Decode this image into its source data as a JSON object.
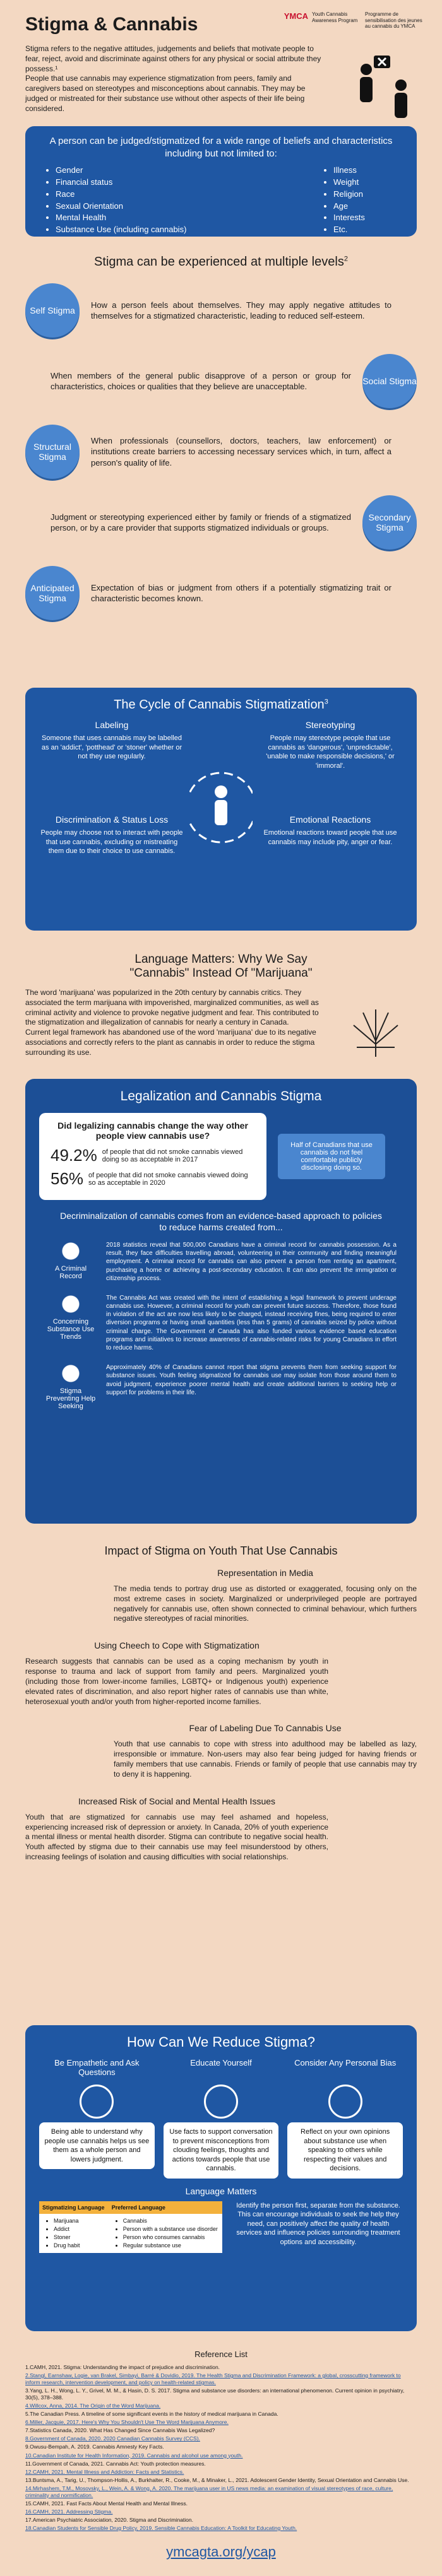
{
  "header": {
    "title": "Stigma & Cannabis",
    "org": [
      "YMCA",
      "Youth Cannabis Awareness Program",
      "Programme de sensibilisation des jeunes au cannabis du YMCA"
    ],
    "intro": [
      "Stigma refers to the negative attitudes, judgements and beliefs that motivate people to fear, reject, avoid and discriminate against others for any physical or social attribute they possess.¹",
      "People that use cannabis may experience stigmatization from peers, family and caregivers based on stereotypes and misconceptions about cannabis. They may be judged or mistreated for their substance use without other aspects of their life being considered."
    ]
  },
  "characteristics": {
    "heading": "A person can be judged/stigmatized for a wide range of beliefs and characteristics including but not limited to:",
    "left": [
      "Gender",
      "Financial status",
      "Race",
      "Sexual Orientation",
      "Mental Health",
      "Substance Use (including cannabis)"
    ],
    "right": [
      "Illness",
      "Weight",
      "Religion",
      "Age",
      "Interests",
      "Etc."
    ]
  },
  "levels": {
    "heading": "Stigma can be experienced at multiple levels",
    "note": "2",
    "items": [
      {
        "label": "Self Stigma",
        "text": "How a person feels about themselves. They may apply negative attitudes to themselves for a stigmatized characteristic, leading to reduced self-esteem."
      },
      {
        "label": "Social Stigma",
        "text": "When members of the general public disapprove of a person or group for characteristics, choices or qualities that they believe are unacceptable."
      },
      {
        "label": "Structural Stigma",
        "text": "When professionals (counsellors, doctors, teachers, law enforcement) or institutions create barriers to accessing necessary services which, in turn, affect a person's quality of life."
      },
      {
        "label": "Secondary Stigma",
        "text": "Judgment or stereotyping experienced either by family or friends of a stigmatized person, or by a care provider that supports stigmatized individuals or groups."
      },
      {
        "label": "Anticipated Stigma",
        "text": "Expectation of bias or judgment from others if a potentially stigmatizing trait or characteristic becomes known."
      }
    ]
  },
  "cycle": {
    "title": "The Cycle of Cannabis Stigmatization",
    "note": "3",
    "items": [
      {
        "title": "Labeling",
        "text": "Someone that uses cannabis may be labelled as an 'addict', 'potthead' or 'stoner' whether or not they use regularly."
      },
      {
        "title": "Stereotyping",
        "text": "People may stereotype people that use cannabis as 'dangerous', 'unpredictable', 'unable to make responsible decisions,' or 'immoral'."
      },
      {
        "title": "Discrimination & Status Loss",
        "text": "People may choose not to interact with people that use cannabis, excluding or mistreating them due to their choice to use cannabis."
      },
      {
        "title": "Emotional Reactions",
        "text": "Emotional reactions toward people that use cannabis may include pity, anger or fear."
      }
    ]
  },
  "language": {
    "title": "Language Matters: Why We Say",
    "subtitle": "\"Cannabis\" Instead Of \"Marijuana\"",
    "text": [
      "The word 'marijuana' was popularized in the 20th century by cannabis critics. They associated the term marijuana with impoverished, marginalized communities, as well as criminal activity and violence to provoke negative judgment and fear. This contributed to the stigmatization and illegalization of cannabis for nearly a century in Canada.",
      "Current legal framework has abandoned use of the word 'marijuana' due to its negative associations and correctly refers to the plant as cannabis in order to reduce the stigma surrounding its use."
    ]
  },
  "legalization": {
    "title": "Legalization and Cannabis Stigma",
    "question": "Did legalizing cannabis change the way other people view cannabis use?",
    "stats": [
      {
        "value": "49.2%",
        "text": "of people that did not smoke cannabis viewed doing so as acceptable in 2017"
      },
      {
        "value": "56%",
        "text": "of people that did not smoke cannabis viewed doing so as acceptable in 2020"
      }
    ],
    "callout": "Half of Canadians that use cannabis do not feel comfortable publicly disclosing doing so.",
    "intro": "Decriminalization of cannabis comes from an evidence-based approach to policies to reduce harms created from...",
    "items": [
      {
        "label": "A Criminal Record",
        "text": "2018 statistics reveal that 500,000 Canadians have a criminal record for cannabis possession. As a result, they face difficulties travelling abroad, volunteering in their community and finding meaningful employment. A criminal record for cannabis can also prevent a person from renting an apartment, purchasing a home or achieving a post-secondary education. It can also prevent the immigration or citizenship process."
      },
      {
        "label": "Concerning Substance Use Trends",
        "text": "The Cannabis Act was created with the intent of establishing a legal framework to prevent underage cannabis use. However, a criminal record for youth can prevent future success. Therefore, those found in violation of the act are now less likely to be charged, instead receiving fines, being required to enter diversion programs or having small quantities (less than 5 grams) of cannabis seized by police without criminal charge. The Government of Canada has also funded various evidence based education programs and initiatives to increase awareness of cannabis-related risks for young Canadians in effort to reduce harms."
      },
      {
        "label": "Stigma Preventing Help Seeking",
        "text": "Approximately 40% of Canadians cannot report that stigma prevents them from seeking support for substance issues. Youth feeling stigmatized for cannabis use may isolate from those around them to avoid judgment, experience poorer mental health and create additional barriers to seeking help or support for problems in their life."
      }
    ]
  },
  "impact": {
    "title": "Impact of Stigma on Youth That Use Cannabis",
    "items": [
      {
        "title": "Representation in Media",
        "text": "The media tends to portray drug use as distorted or exaggerated, focusing only on the most extreme cases in society. Marginalized or underprivileged people are portrayed negatively for cannabis use, often shown connected to criminal behaviour, which furthers negative stereotypes of racial minorities."
      },
      {
        "title": "Using Cheech to Cope with Stigmatization",
        "text": "Research suggests that cannabis can be used as a coping mechanism by youth in response to trauma and lack of support from family and peers. Marginalized youth (including those from lower-income families, LGBTQ+ or Indigenous youth) experience elevated rates of discrimination, and also report higher rates of cannabis use than white, heterosexual youth and/or youth from higher-reported income families."
      },
      {
        "title": "Fear of Labeling Due To Cannabis Use",
        "text": "Youth that use cannabis to cope with stress into adulthood may be labelled as lazy, irresponsible or immature. Non-users may also fear being judged for having friends or family members that use cannabis. Friends or family of people that use cannabis may try to deny it is happening."
      },
      {
        "title": "Increased Risk of Social and Mental Health Issues",
        "text": "Youth that are stigmatized for cannabis use may feel ashamed and hopeless, experiencing increased risk of depression or anxiety. In Canada, 20% of youth experience a mental illness or mental health disorder. Stigma can contribute to negative social health. Youth affected by stigma due to their cannabis use may feel misunderstood by others, increasing feelings of isolation and causing difficulties with social relationships."
      }
    ]
  },
  "reduce": {
    "title": "How Can We Reduce Stigma?",
    "tips": [
      {
        "title": "Be Empathetic and Ask Questions",
        "text": "Being able to understand why people use cannabis helps us see them as a whole person and lowers judgment."
      },
      {
        "title": "Educate Yourself",
        "text": "Use facts to support conversation to prevent misconceptions from clouding feelings, thoughts and actions towards people that use cannabis."
      },
      {
        "title": "Consider Any Personal Bias",
        "text": "Reflect on your own opinions about substance use when speaking to others while respecting their values and decisions."
      }
    ],
    "lm_title": "Language Matters",
    "headers": [
      "Stigmatizing Language",
      "Preferred Language"
    ],
    "stigmatizing": [
      "Marijuana",
      "Addict",
      "Stoner",
      "Drug habit"
    ],
    "preferred": [
      "Cannabis",
      "Person with a substance use disorder",
      "Person who consumes cannabis",
      "Regular substance use"
    ],
    "lm_text": "Identify the person first, separate from the substance. This can encourage individuals to seek the help they need, can positively affect the quality of health services and influence policies surrounding treatment options and accessibility."
  },
  "references": {
    "title": "Reference List",
    "items": [
      "1.CAMH, 2021. Stigma: Understanding the impact of prejudice and discrimination.",
      "2.Stangl, Earnshaw, Logie, van Brakel, Simbayi, Barré & Dovidio, 2019. The Health Stigma and Discrimination Framework: a global, crosscutting framework to inform research, intervention development, and policy on health-related stigmas.",
      "3.Yang, L. H., Wong, L. Y., Grivel, M. M., & Hasin, D. S. 2017. Stigma and substance use disorders: an international phenomenon. Current opinion in psychiatry, 30(5), 378–388.",
      "4.Willcox, Anna, 2014. The Origin of the Word Marijuana.",
      "5.The Canadian Press. A timeline of some significant events in the history of medical marijuana in Canada.",
      "6.Miller, Jacquie, 2017. Here's Why You Shouldn't Use The Word Marijuana Anymore.",
      "7.Statistics Canada, 2020. What Has Changed Since Cannabis Was Legalized?",
      "8.Government of Canada, 2020. 2020 Canadian Cannabis Survey (CCS).",
      "9.Owusu-Bempah, A. 2019. Cannabis Amnesty Key Facts.",
      "10.Canadian Institute for Health Information, 2019. Cannabis and alcohol use among youth.",
      "11.Government of Canada, 2021. Cannabis Act: Youth protection measures.",
      "12.CAMH, 2021. Mental Illness and Addiction: Facts and Statistics.",
      "13.Buntsma, A., Tarig, U., Thompson-Hollis, A., Burkhalter, R., Cooke, M., & Minaker, L., 2021. Adolescent Gender Identity, Sexual Orientation and Cannabis Use.",
      "14.Mirhashem, T.M., Mosovsky, L., Wein, A. & Wong, A. 2020. The marijuana user in US news media: an examination of visual stereotypes of race, culture, criminality and normification.",
      "15.CAMH, 2021. Fast Facts About Mental Health and Mental Illness.",
      "16.CAMH, 2021. Addressing Stigma.",
      "17.American Psychiatric Association, 2020. Stigma and Discrimination.",
      "18.Canadian Students for Sensible Drug Policy, 2019. Sensible Cannabis Education: A Toolkit for Educating Youth."
    ]
  },
  "footer": {
    "url": "ymcagta.org/ycap"
  }
}
